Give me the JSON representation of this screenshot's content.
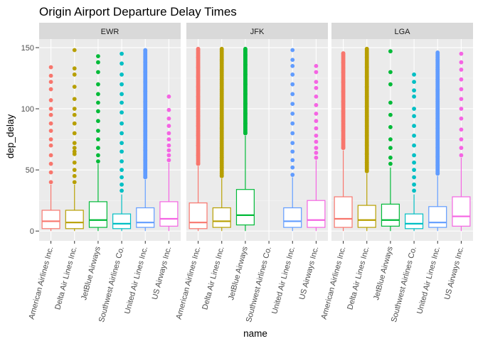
{
  "chart_data": {
    "type": "boxplot",
    "title": "Origin Airport Departure Delay Times",
    "xlabel": "name",
    "ylabel": "dep_delay",
    "ylim": [
      -8,
      157
    ],
    "yticks": [
      0,
      50,
      100,
      150
    ],
    "grid": true,
    "legend": "none",
    "facet_by": "origin",
    "categories": [
      "American Airlines Inc.",
      "Delta Air Lines Inc.",
      "JetBlue Airways",
      "Southwest Airlines Co.",
      "United Air Lines Inc.",
      "US Airways Inc."
    ],
    "colors": [
      "#F8766D",
      "#B79F00",
      "#00BA38",
      "#00BFC4",
      "#619CFF",
      "#F564E3"
    ],
    "facets": [
      {
        "name": "EWR",
        "boxes": [
          {
            "q1": 2,
            "median": 8,
            "q3": 17,
            "whisker_low": 0,
            "whisker_high": 38,
            "outliers": [
              40,
              48,
              55,
              62,
              70,
              75,
              82,
              88,
              95,
              100,
              107,
              116,
              122,
              127,
              134
            ]
          },
          {
            "q1": 2,
            "median": 7,
            "q3": 17,
            "whisker_low": 0,
            "whisker_high": 38,
            "outliers": [
              40,
              45,
              50,
              56,
              63,
              65,
              68,
              72,
              80,
              88,
              95,
              100,
              108,
              118,
              128,
              133,
              148
            ]
          },
          {
            "q1": 3,
            "median": 9,
            "q3": 24,
            "whisker_low": 0,
            "whisker_high": 55,
            "outliers": [
              57,
              62,
              68,
              75,
              82,
              90,
              98,
              105,
              112,
              120,
              130,
              138,
              143
            ]
          },
          {
            "q1": 2,
            "median": 6,
            "q3": 14,
            "whisker_low": 0,
            "whisker_high": 30,
            "outliers": [
              33,
              38,
              44,
              50,
              57,
              65,
              72,
              80,
              88,
              97,
              105,
              112,
              120,
              128,
              137,
              145
            ]
          },
          {
            "q1": 3,
            "median": 7,
            "q3": 19,
            "whisker_low": 0,
            "whisker_high": 42,
            "outliers": [
              44,
              50,
              58,
              66,
              74,
              82,
              90,
              98,
              106,
              114,
              122,
              130,
              138,
              148
            ],
            "dense_range": [
              44,
              148
            ]
          },
          {
            "q1": 4,
            "median": 10,
            "q3": 24,
            "whisker_low": 0,
            "whisker_high": 56,
            "outliers": [
              58,
              62,
              66,
              70,
              75,
              80,
              86,
              92,
              99,
              110
            ]
          }
        ]
      },
      {
        "name": "JFK",
        "boxes": [
          {
            "q1": 2,
            "median": 7,
            "q3": 23,
            "whisker_low": 0,
            "whisker_high": 53,
            "outliers": [
              55,
              62,
              70,
              78,
              86,
              94,
              102,
              110,
              118,
              126,
              134,
              142,
              149
            ],
            "dense_range": [
              55,
              149
            ]
          },
          {
            "q1": 3,
            "median": 8,
            "q3": 19,
            "whisker_low": 0,
            "whisker_high": 43,
            "outliers": [
              45,
              52,
              60,
              68,
              76,
              84,
              92,
              100,
              108,
              116,
              124,
              132,
              140,
              149
            ],
            "dense_range": [
              45,
              149
            ]
          },
          {
            "q1": 5,
            "median": 13,
            "q3": 34,
            "whisker_low": 0,
            "whisker_high": 78,
            "outliers": [
              80,
              88,
              96,
              104,
              112,
              120,
              128,
              136,
              144,
              149
            ],
            "dense_range": [
              80,
              149
            ]
          },
          {
            "empty": true
          },
          {
            "q1": 3,
            "median": 8,
            "q3": 19,
            "whisker_low": 0,
            "whisker_high": 44,
            "outliers": [
              46,
              52,
              58,
              65,
              72,
              80,
              88,
              96,
              104,
              112,
              120,
              128,
              135,
              140,
              148
            ]
          },
          {
            "q1": 3,
            "median": 9,
            "q3": 25,
            "whisker_low": 0,
            "whisker_high": 58,
            "outliers": [
              60,
              64,
              68,
              73,
              78,
              84,
              90,
              96,
              103,
              110,
              117,
              122,
              130,
              135
            ]
          }
        ]
      },
      {
        "name": "LGA",
        "boxes": [
          {
            "q1": 3,
            "median": 10,
            "q3": 28,
            "whisker_low": 0,
            "whisker_high": 66,
            "outliers": [
              68,
              75,
              82,
              90,
              98,
              106,
              114,
              122,
              130,
              138,
              145
            ],
            "dense_range": [
              68,
              146
            ]
          },
          {
            "q1": 3,
            "median": 9,
            "q3": 21,
            "whisker_low": 0,
            "whisker_high": 47,
            "outliers": [
              49,
              56,
              63,
              70,
              78,
              86,
              94,
              102,
              110,
              118,
              126,
              134,
              142,
              149
            ],
            "dense_range": [
              49,
              149
            ]
          },
          {
            "q1": 4,
            "median": 9,
            "q3": 22,
            "whisker_low": 0,
            "whisker_high": 52,
            "outliers": [
              55,
              60,
              68,
              75,
              85,
              95,
              105,
              120,
              130,
              147
            ]
          },
          {
            "q1": 2,
            "median": 6,
            "q3": 14,
            "whisker_low": 0,
            "whisker_high": 30,
            "outliers": [
              33,
              38,
              44,
              50,
              56,
              62,
              70,
              78,
              86,
              94,
              100,
              110,
              115,
              122,
              128
            ]
          },
          {
            "q1": 3,
            "median": 7,
            "q3": 20,
            "whisker_low": 0,
            "whisker_high": 45,
            "outliers": [
              47,
              54,
              61,
              68,
              76,
              84,
              92,
              100,
              108,
              116,
              124,
              132,
              140,
              146
            ],
            "dense_range": [
              47,
              146
            ]
          },
          {
            "q1": 4,
            "median": 12,
            "q3": 28,
            "whisker_low": 0,
            "whisker_high": 60,
            "outliers": [
              62,
              68,
              75,
              83,
              92,
              100,
              108,
              116,
              124,
              132,
              138,
              145
            ]
          }
        ]
      }
    ]
  }
}
